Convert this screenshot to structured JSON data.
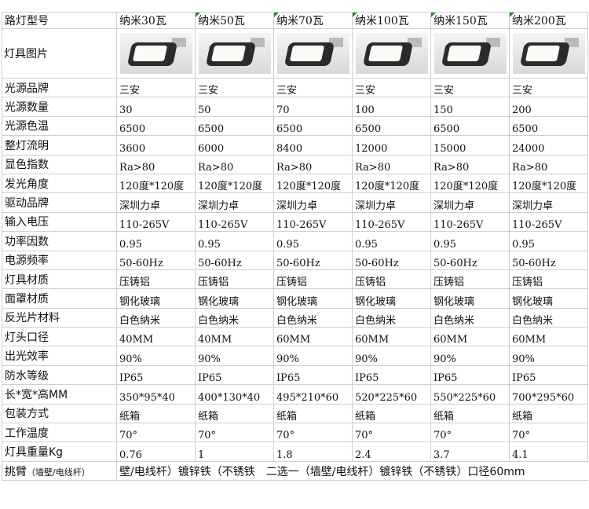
{
  "header": {
    "label": "路灯型号",
    "models": [
      "纳米30瓦",
      "纳米50瓦",
      "纳米70瓦",
      "纳米100瓦",
      "纳米150瓦",
      "纳米200瓦"
    ]
  },
  "image_row": {
    "label": "灯具图片",
    "images": [
      "street-lamp-30w",
      "street-lamp-50w",
      "street-lamp-70w",
      "street-lamp-100w",
      "street-lamp-150w",
      "street-lamp-200w"
    ]
  },
  "rows": [
    {
      "label": "光源品牌",
      "values": [
        "三安",
        "三安",
        "三安",
        "三安",
        "三安",
        "三安"
      ]
    },
    {
      "label": "光源数量",
      "values": [
        "30",
        "50",
        "70",
        "100",
        "150",
        "200"
      ]
    },
    {
      "label": "光源色温",
      "values": [
        "6500",
        "6500",
        "6500",
        "6500",
        "6500",
        "6500"
      ]
    },
    {
      "label": "整灯流明",
      "values": [
        "3600",
        "6000",
        "8400",
        "12000",
        "15000",
        "24000"
      ]
    },
    {
      "label": "显色指数",
      "values": [
        "Ra>80",
        "Ra>80",
        "Ra>80",
        "Ra>80",
        "Ra>80",
        "Ra>80"
      ]
    },
    {
      "label": "发光角度",
      "values": [
        "120度*120度",
        "120度*120度",
        "120度*120度",
        "120度*120度",
        "120度*120度",
        "120度*120度"
      ]
    },
    {
      "label": "驱动品牌",
      "values": [
        "深圳力卓",
        "深圳力卓",
        "深圳力卓",
        "深圳力卓",
        "深圳力卓",
        "深圳力卓"
      ]
    },
    {
      "label": "输入电压",
      "values": [
        "110-265V",
        "110-265V",
        "110-265V",
        "110-265V",
        "110-265V",
        "110-265V"
      ]
    },
    {
      "label": "功率因数",
      "values": [
        "0.95",
        "0.95",
        "0.95",
        "0.95",
        "0.95",
        "0.95"
      ]
    },
    {
      "label": "电源频率",
      "values": [
        "50-60Hz",
        "50-60Hz",
        "50-60Hz",
        "50-60Hz",
        "50-60Hz",
        "50-60Hz"
      ]
    },
    {
      "label": "灯具材质",
      "values": [
        "压铸铝",
        "压铸铝",
        "压铸铝",
        "压铸铝",
        "压铸铝",
        "压铸铝"
      ]
    },
    {
      "label": "面罩材质",
      "values": [
        "钢化玻璃",
        "钢化玻璃",
        "钢化玻璃",
        "钢化玻璃",
        "钢化玻璃",
        "钢化玻璃"
      ]
    },
    {
      "label": "反光片材料",
      "values": [
        "白色纳米",
        "白色纳米",
        "白色纳米",
        "白色纳米",
        "白色纳米",
        "白色纳米"
      ]
    },
    {
      "label": "灯头口径",
      "values": [
        "40MM",
        "40MM",
        "60MM",
        "60MM",
        "60MM",
        "60MM"
      ]
    },
    {
      "label": "出光效率",
      "values": [
        "90%",
        "90%",
        "90%",
        "90%",
        "90%",
        "90%"
      ]
    },
    {
      "label": "防水等级",
      "values": [
        "IP65",
        "IP65",
        "IP65",
        "IP65",
        "IP65",
        "IP65"
      ]
    },
    {
      "label": "长*宽*高MM",
      "values": [
        "350*95*40",
        "400*130*40",
        "495*210*60",
        "520*225*60",
        "550*225*60",
        "700*295*60"
      ]
    },
    {
      "label": "包装方式",
      "values": [
        "纸箱",
        "纸箱",
        "纸箱",
        "纸箱",
        "纸箱",
        "纸箱"
      ]
    },
    {
      "label": "工作温度",
      "values": [
        "70°",
        "70°",
        "70°",
        "70°",
        "70°",
        "70°"
      ]
    },
    {
      "label": "灯具重量Kg",
      "values": [
        "0.76",
        "1",
        "1.8",
        "2.4",
        "3.7",
        "4.1"
      ]
    }
  ],
  "arm_row": {
    "label": "挑臂",
    "label_note": "（墙壁/电线杆）",
    "value": "壁/电线杆）镀锌铁（不锈铁　二选一（墙壁/电线杆）镀锌铁（不锈铁）口径60mm"
  }
}
